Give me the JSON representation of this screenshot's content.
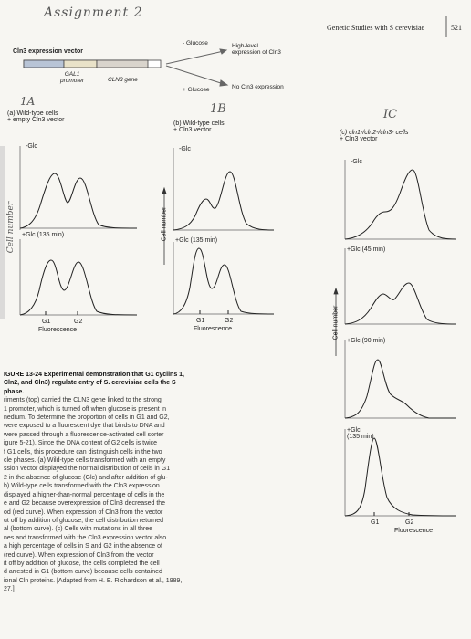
{
  "header": {
    "handwritten_title": "Assignment 2",
    "running_head": "Genetic Studies with S cerevisiae",
    "page_number": "521"
  },
  "vector_diagram": {
    "title": "Cln3 expression vector",
    "gal1_promoter": "GAL1\npromoter",
    "gal1_line1": "GAL1",
    "gal1_line2": "promoter",
    "cln3_gene": "CLN3 gene",
    "minus_glucose": "- Glucose",
    "high_level_line1": "High-level",
    "high_level_line2": "expression of Cln3",
    "plus_glucose": "+ Glucose",
    "no_expression": "No Cln3 expression"
  },
  "panel_a": {
    "hand_label": "1A",
    "title_line1": "(a) Wild-type cells",
    "title_line2": "+ empty Cln3 vector",
    "curve1_label": "-Glc",
    "curve2_label": "+Glc (135 min)",
    "y_axis_hand": "Cell number",
    "g1": "G1",
    "g2": "G2",
    "x_label": "Fluorescence"
  },
  "panel_b": {
    "hand_label": "1B",
    "title_line1": "(b) Wild-type cells",
    "title_line2": "+ Cln3 vector",
    "curve1_label": "-Glc",
    "curve2_label": "+Glc (135 min)",
    "y_axis": "Cell number",
    "g1": "G1",
    "g2": "G2",
    "x_label": "Fluorescence"
  },
  "panel_c": {
    "hand_label": "IC",
    "title_line1": "(c) cln1-/cln2-/cln3- cells",
    "title_line2": "+ Cln3 vector",
    "curve1_label": "-Glc",
    "curve2_label": "+Glc (45 min)",
    "curve3_label": "+Glc (90 min)",
    "curve4_line1": "+Glc",
    "curve4_line2": "(135 min)",
    "y_axis": "Cell number",
    "g1": "G1",
    "g2": "G2",
    "x_label": "Fluorescence"
  },
  "caption": {
    "heading": "IGURE 13-24 Experimental demonstration that G1 cyclins 1, Cln2, and Cln3) regulate entry of S. cerevisiae cells the S phase.",
    "lines": [
      "riments (top) carried the CLN3 gene linked to the strong",
      "1 promoter, which is turned off when glucose is present in",
      "nedium. To determine the proportion of cells in G1 and G2,",
      "were exposed to a fluorescent dye that binds to DNA and",
      "were passed through a fluorescence-activated cell sorter",
      "igure 5-21). Since the DNA content of G2 cells is twice",
      "f G1 cells, this procedure can distinguish cells in the two",
      "cle phases. (a) Wild-type cells transformed with an empty",
      "ssion vector displayed the normal distribution of cells in G1",
      "2 in the absence of glucose (Glc) and after addition of glu-",
      "b) Wild-type cells transformed with the Cln3 expression",
      "displayed a higher-than-normal percentage of cells in the",
      "e and G2 because overexpression of Cln3 decreased the",
      "od (red curve). When expression of Cln3 from the vector",
      "ut off by addition of glucose, the cell distribution returned",
      "al (bottom curve). (c) Cells with mutations in all three",
      "nes and transformed with the Cln3 expression vector also",
      "a high percentage of cells in S and G2 in the absence of",
      "(red curve). When expression of Cln3 from the vector",
      "it off by addition of glucose, the cells completed the cell",
      "d arrested in G1 (bottom curve) because cells contained",
      "ional Cln proteins. [Adapted from H. E. Richardson et al., 1989,",
      "27.]"
    ]
  }
}
